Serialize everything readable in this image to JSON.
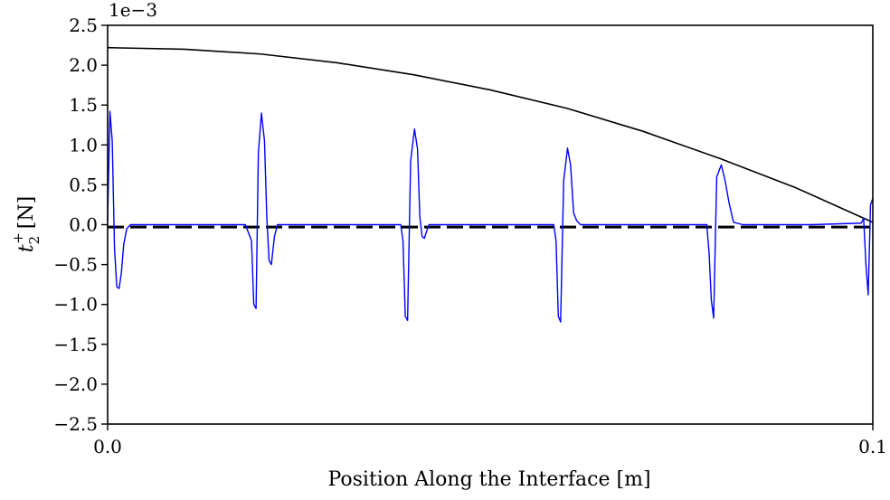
{
  "chart_data": {
    "type": "line",
    "title": "",
    "xlabel": "Position Along the Interface [m]",
    "ylabel_main": "t",
    "ylabel_sub": "2",
    "ylabel_sup": "+",
    "ylabel_unit": "[N]",
    "y_multiplier": "1e−3",
    "xlim": [
      0.0,
      0.1
    ],
    "ylim": [
      -2.5,
      2.5
    ],
    "x_ticks": [
      {
        "value": 0.0,
        "label": "0.0"
      },
      {
        "value": 0.1,
        "label": "0.1"
      }
    ],
    "y_ticks": [
      {
        "value": 2.5,
        "label": "2.5"
      },
      {
        "value": 2.0,
        "label": "2.0"
      },
      {
        "value": 1.5,
        "label": "1.5"
      },
      {
        "value": 1.0,
        "label": "1.0"
      },
      {
        "value": 0.5,
        "label": "0.5"
      },
      {
        "value": 0.0,
        "label": "0.0"
      },
      {
        "value": -0.5,
        "label": "−0.5"
      },
      {
        "value": -1.0,
        "label": "−1.0"
      },
      {
        "value": -1.5,
        "label": "−1.5"
      },
      {
        "value": -2.0,
        "label": "−2.0"
      },
      {
        "value": -2.5,
        "label": "−2.5"
      }
    ],
    "grid": false,
    "legend": "none",
    "series": [
      {
        "color": "#000000",
        "style": "solid",
        "width": 1.6,
        "x": [
          0.0,
          0.01,
          0.02,
          0.03,
          0.04,
          0.05,
          0.06,
          0.07,
          0.08,
          0.09,
          0.1
        ],
        "y": [
          2.22,
          2.2,
          2.14,
          2.03,
          1.88,
          1.69,
          1.46,
          1.17,
          0.83,
          0.46,
          0.03
        ]
      },
      {
        "color": "#000000",
        "style": "dashed",
        "width": 3.0,
        "x": [
          0.0,
          0.1
        ],
        "y": [
          -0.03,
          -0.03
        ]
      },
      {
        "color": "#0000ff",
        "style": "solid",
        "width": 1.4,
        "x": [
          0.0,
          0.0003,
          0.0006,
          0.0009,
          0.0012,
          0.0015,
          0.0018,
          0.0021,
          0.0025,
          0.003,
          0.006,
          0.012,
          0.018,
          0.0188,
          0.0191,
          0.0194,
          0.0197,
          0.0201,
          0.0205,
          0.0208,
          0.0211,
          0.0214,
          0.0218,
          0.0222,
          0.024,
          0.032,
          0.0383,
          0.0386,
          0.0389,
          0.0392,
          0.0396,
          0.0401,
          0.0405,
          0.0408,
          0.0411,
          0.0414,
          0.0418,
          0.042,
          0.052,
          0.0583,
          0.0586,
          0.0589,
          0.0592,
          0.0596,
          0.0601,
          0.0605,
          0.0609,
          0.0613,
          0.0618,
          0.064,
          0.072,
          0.0783,
          0.0786,
          0.0789,
          0.0792,
          0.0796,
          0.0802,
          0.0807,
          0.0812,
          0.0818,
          0.083,
          0.092,
          0.0985,
          0.0988,
          0.0991,
          0.0994,
          0.0997,
          0.1
        ],
        "y": [
          0.05,
          1.42,
          1.05,
          -0.3,
          -0.78,
          -0.8,
          -0.6,
          -0.25,
          -0.05,
          0.0,
          0.0,
          0.0,
          0.0,
          -0.2,
          -1.0,
          -1.05,
          0.9,
          1.4,
          1.05,
          0.1,
          -0.45,
          -0.5,
          -0.15,
          0.0,
          0.0,
          0.0,
          0.0,
          -0.2,
          -1.15,
          -1.2,
          0.8,
          1.2,
          0.95,
          0.1,
          -0.15,
          -0.17,
          -0.05,
          0.0,
          0.0,
          0.0,
          -0.2,
          -1.15,
          -1.22,
          0.55,
          0.96,
          0.75,
          0.15,
          0.05,
          0.0,
          0.0,
          0.0,
          0.0,
          -0.35,
          -0.95,
          -1.17,
          0.6,
          0.75,
          0.55,
          0.28,
          0.03,
          0.0,
          0.0,
          0.02,
          0.08,
          -0.5,
          -0.88,
          0.25,
          0.33
        ]
      }
    ]
  }
}
